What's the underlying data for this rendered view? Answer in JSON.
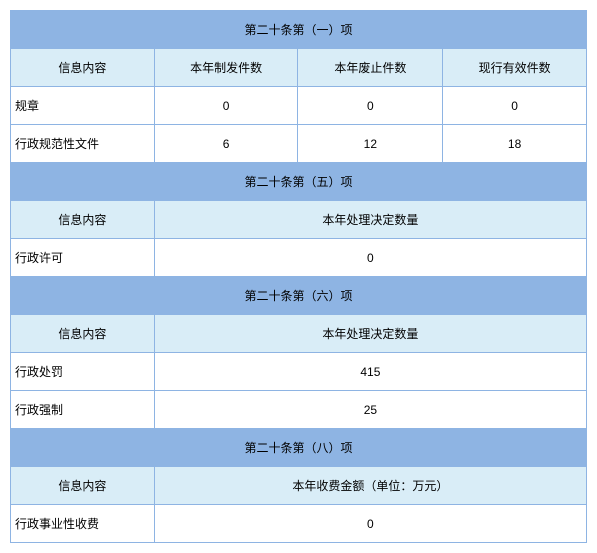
{
  "colors": {
    "section_header_bg": "#8eb4e3",
    "sub_header_bg": "#d9edf7",
    "data_row_bg": "#ffffff",
    "border": "#8eb4e3",
    "text": "#000000"
  },
  "col_widths": {
    "c1": "144px",
    "c2": "144px",
    "c3": "145px",
    "c4": "144px"
  },
  "sections": {
    "s1": {
      "title": "第二十条第（一）项",
      "header_label": "信息内容",
      "col_h1": "本年制发件数",
      "col_h2": "本年废止件数",
      "col_h3": "现行有效件数",
      "rows": [
        {
          "label": "规章",
          "v1": "0",
          "v2": "0",
          "v3": "0"
        },
        {
          "label": "行政规范性文件",
          "v1": "6",
          "v2": "12",
          "v3": "18"
        }
      ]
    },
    "s2": {
      "title": "第二十条第（五）项",
      "header_label": "信息内容",
      "col_merged": "本年处理决定数量",
      "rows": [
        {
          "label": "行政许可",
          "v": "0"
        }
      ]
    },
    "s3": {
      "title": "第二十条第（六）项",
      "header_label": "信息内容",
      "col_merged": "本年处理决定数量",
      "rows": [
        {
          "label": "行政处罚",
          "v": "415"
        },
        {
          "label": "行政强制",
          "v": "25"
        }
      ]
    },
    "s4": {
      "title": "第二十条第（八）项",
      "header_label": "信息内容",
      "col_merged": "本年收费金额（单位：万元）",
      "rows": [
        {
          "label": "行政事业性收费",
          "v": "0"
        }
      ]
    }
  }
}
